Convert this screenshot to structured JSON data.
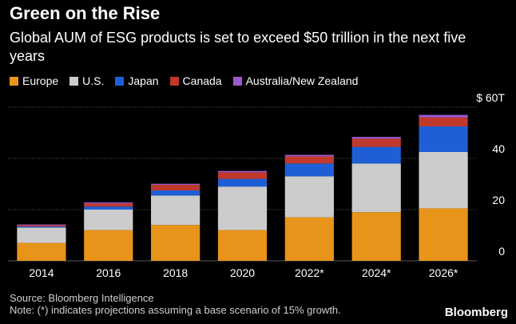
{
  "chart_data": {
    "type": "bar",
    "stacked": true,
    "title": "Green on the Rise",
    "subtitle": "Global AUM of ESG products is set to exceed $50 trillion in the next five years",
    "categories": [
      "2014",
      "2016",
      "2018",
      "2020",
      "2022*",
      "2024*",
      "2026*"
    ],
    "series": [
      {
        "name": "Europe",
        "color": "#e8941a",
        "values": [
          7,
          12,
          14,
          12,
          17,
          19,
          20.5
        ]
      },
      {
        "name": "U.S.",
        "color": "#cccccc",
        "values": [
          6,
          8,
          11.5,
          17,
          16,
          19,
          22
        ]
      },
      {
        "name": "Japan",
        "color": "#1f5fd6",
        "values": [
          0.4,
          1.2,
          2,
          3,
          5,
          6.5,
          10
        ]
      },
      {
        "name": "Canada",
        "color": "#c0392b",
        "values": [
          0.5,
          1.2,
          2.2,
          2.6,
          2.8,
          3.2,
          3.5
        ]
      },
      {
        "name": "Australia/New Zealand",
        "color": "#9b59d0",
        "values": [
          0.3,
          0.4,
          0.4,
          0.5,
          0.6,
          0.7,
          1
        ]
      }
    ],
    "y_ticks": [
      "0",
      "20",
      "40",
      "$ 60T"
    ],
    "y_tick_values": [
      0,
      20,
      40,
      60
    ],
    "ylim": [
      0,
      60
    ],
    "grid": true,
    "legend_position": "top-left"
  },
  "source": "Source: Bloomberg Intelligence",
  "note": "Note: (*) indicates projections assuming a base scenario of 15% growth.",
  "brand": "Bloomberg"
}
